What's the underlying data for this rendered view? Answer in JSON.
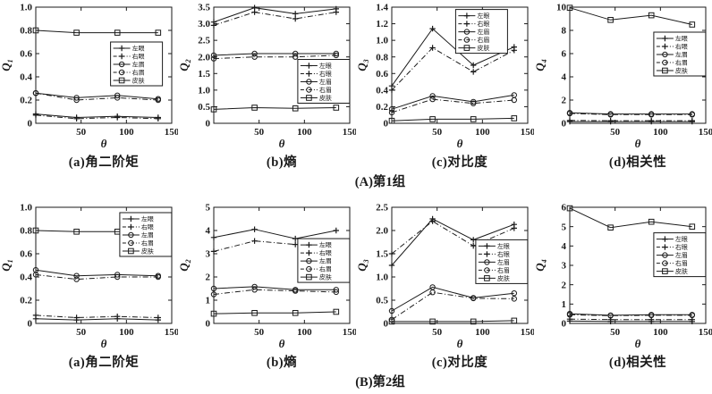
{
  "colors": {
    "ink": "#1a1a1a",
    "background": "#ffffff"
  },
  "group_captions": {
    "a": "(A)第1组",
    "b": "(B)第2组"
  },
  "legend": {
    "items": [
      {
        "label": "左眼",
        "line": "solid",
        "marker": "plus"
      },
      {
        "label": "右眼",
        "line": "dashdot",
        "marker": "plus"
      },
      {
        "label": "左眉",
        "line": "solid",
        "marker": "circle"
      },
      {
        "label": "右眉",
        "line": "dashdot",
        "marker": "circle"
      },
      {
        "label": "皮肤",
        "line": "solid",
        "marker": "square"
      }
    ]
  },
  "chart_data": [
    {
      "group": "A",
      "type": "line",
      "caption": "(a)角二阶矩",
      "xlabel": "θ",
      "ylabel": "Q",
      "ylabel_sub": "1",
      "x": [
        0,
        45,
        90,
        135
      ],
      "xlim": [
        0,
        150
      ],
      "xticks": [
        50,
        100,
        150
      ],
      "xtick_labels": [
        "50",
        "100",
        "150"
      ],
      "ylim": [
        0,
        1.0
      ],
      "yticks": [
        0,
        0.2,
        0.4,
        0.6,
        0.8,
        1.0
      ],
      "ytick_labels": [
        "0",
        "0.2",
        "0.4",
        "0.6",
        "0.8",
        "1.0"
      ],
      "grid": false,
      "legend_pos": {
        "fx": 0.55,
        "fy": 0.3
      },
      "series": [
        {
          "name": "左眼",
          "values": [
            0.08,
            0.05,
            0.06,
            0.05
          ]
        },
        {
          "name": "右眼",
          "values": [
            0.07,
            0.04,
            0.05,
            0.04
          ]
        },
        {
          "name": "左眉",
          "values": [
            0.26,
            0.22,
            0.24,
            0.21
          ]
        },
        {
          "name": "右眉",
          "values": [
            0.26,
            0.2,
            0.22,
            0.2
          ]
        },
        {
          "name": "皮肤",
          "values": [
            0.8,
            0.78,
            0.78,
            0.78
          ]
        }
      ]
    },
    {
      "group": "A",
      "type": "line",
      "caption": "(b)熵",
      "xlabel": "θ",
      "ylabel": "Q",
      "ylabel_sub": "2",
      "x": [
        0,
        45,
        90,
        135
      ],
      "xlim": [
        0,
        150
      ],
      "xticks": [
        50,
        100,
        150
      ],
      "xtick_labels": [
        "50",
        "100",
        "150"
      ],
      "ylim": [
        0,
        3.5
      ],
      "yticks": [
        0,
        0.5,
        1.0,
        1.5,
        2.0,
        2.5,
        3.0,
        3.5
      ],
      "ytick_labels": [
        "0",
        "0.5",
        "1.0",
        "1.5",
        "2.0",
        "2.5",
        "3.0",
        "3.5"
      ],
      "grid": false,
      "legend_pos": {
        "fx": 0.618,
        "fy": 0.45
      },
      "series": [
        {
          "name": "左眼",
          "values": [
            3.05,
            3.48,
            3.3,
            3.45
          ]
        },
        {
          "name": "右眼",
          "values": [
            2.95,
            3.35,
            3.15,
            3.35
          ]
        },
        {
          "name": "左眉",
          "values": [
            2.05,
            2.1,
            2.1,
            2.1
          ]
        },
        {
          "name": "右眉",
          "values": [
            1.95,
            2.0,
            2.0,
            2.05
          ]
        },
        {
          "name": "皮肤",
          "values": [
            0.42,
            0.47,
            0.45,
            0.47
          ]
        }
      ]
    },
    {
      "group": "A",
      "type": "line",
      "caption": "(c)对比度",
      "xlabel": "θ",
      "ylabel": "Q",
      "ylabel_sub": "3",
      "x": [
        0,
        45,
        90,
        135
      ],
      "xlim": [
        0,
        150
      ],
      "xticks": [
        50,
        100,
        150
      ],
      "xtick_labels": [
        "50",
        "100",
        "150"
      ],
      "ylim": [
        0,
        1.4
      ],
      "yticks": [
        0,
        0.2,
        0.4,
        0.6,
        0.8,
        1.0,
        1.2,
        1.4
      ],
      "ytick_labels": [
        "0",
        "0.2",
        "0.4",
        "0.6",
        "0.8",
        "1.0",
        "1.2",
        "1.4"
      ],
      "grid": false,
      "legend_pos": {
        "fx": 0.47,
        "fy": 0.02
      },
      "series": [
        {
          "name": "左眼",
          "values": [
            0.45,
            1.14,
            0.7,
            0.92
          ]
        },
        {
          "name": "右眼",
          "values": [
            0.4,
            0.91,
            0.62,
            0.88
          ]
        },
        {
          "name": "左眉",
          "values": [
            0.17,
            0.33,
            0.26,
            0.34
          ]
        },
        {
          "name": "右眉",
          "values": [
            0.13,
            0.29,
            0.24,
            0.28
          ]
        },
        {
          "name": "皮肤",
          "values": [
            0.03,
            0.05,
            0.05,
            0.06
          ]
        }
      ]
    },
    {
      "group": "A",
      "type": "line",
      "caption": "(d)相关性",
      "xlabel": "θ",
      "ylabel": "Q",
      "ylabel_sub": "4",
      "x": [
        0,
        45,
        90,
        135
      ],
      "xlim": [
        0,
        150
      ],
      "xticks": [
        50,
        100,
        150
      ],
      "xtick_labels": [
        "50",
        "100",
        "150"
      ],
      "ylim": [
        0,
        10
      ],
      "yticks": [
        0,
        2,
        4,
        6,
        8,
        10
      ],
      "ytick_labels": [
        "0",
        "2",
        "4",
        "6",
        "8",
        "10"
      ],
      "grid": false,
      "legend_pos": {
        "fx": 0.618,
        "fy": 0.215
      },
      "series": [
        {
          "name": "左眼",
          "values": [
            0.15,
            0.15,
            0.15,
            0.15
          ]
        },
        {
          "name": "右眼",
          "values": [
            0.25,
            0.22,
            0.22,
            0.22
          ]
        },
        {
          "name": "左眉",
          "values": [
            0.9,
            0.8,
            0.8,
            0.8
          ]
        },
        {
          "name": "右眉",
          "values": [
            0.85,
            0.75,
            0.75,
            0.75
          ]
        },
        {
          "name": "皮肤",
          "values": [
            9.95,
            8.9,
            9.3,
            8.5
          ]
        }
      ]
    },
    {
      "group": "B",
      "type": "line",
      "caption": "(a)角二阶矩",
      "xlabel": "θ",
      "ylabel": "Q",
      "ylabel_sub": "1",
      "x": [
        0,
        45,
        90,
        135
      ],
      "xlim": [
        0,
        150
      ],
      "xticks": [
        50,
        100,
        150
      ],
      "xtick_labels": [
        "50",
        "100",
        "150"
      ],
      "ylim": [
        0,
        1.0
      ],
      "yticks": [
        0,
        0.2,
        0.4,
        0.6,
        0.8,
        1.0
      ],
      "ytick_labels": [
        "0",
        "0.2",
        "0.4",
        "0.6",
        "0.8",
        "1.0"
      ],
      "grid": false,
      "legend_pos": {
        "fx": 0.618,
        "fy": 0.046
      },
      "series": [
        {
          "name": "左眼",
          "values": [
            0.04,
            0.03,
            0.04,
            0.03
          ]
        },
        {
          "name": "右眼",
          "values": [
            0.07,
            0.05,
            0.06,
            0.05
          ]
        },
        {
          "name": "左眉",
          "values": [
            0.46,
            0.41,
            0.42,
            0.41
          ]
        },
        {
          "name": "右眉",
          "values": [
            0.42,
            0.38,
            0.4,
            0.4
          ]
        },
        {
          "name": "皮肤",
          "values": [
            0.8,
            0.79,
            0.79,
            0.79
          ]
        }
      ]
    },
    {
      "group": "B",
      "type": "line",
      "caption": "(b)熵",
      "xlabel": "θ",
      "ylabel": "Q",
      "ylabel_sub": "2",
      "x": [
        0,
        45,
        90,
        135
      ],
      "xlim": [
        0,
        150
      ],
      "xticks": [
        50,
        100,
        150
      ],
      "xtick_labels": [
        "50",
        "100",
        "150"
      ],
      "ylim": [
        0,
        5
      ],
      "yticks": [
        0,
        1,
        2,
        3,
        4,
        5
      ],
      "ytick_labels": [
        "0",
        "1",
        "2",
        "3",
        "4",
        "5"
      ],
      "grid": false,
      "legend_pos": {
        "fx": 0.618,
        "fy": 0.27
      },
      "series": [
        {
          "name": "左眼",
          "values": [
            3.7,
            4.05,
            3.65,
            4.0
          ]
        },
        {
          "name": "右眼",
          "values": [
            3.1,
            3.55,
            3.4,
            3.5
          ]
        },
        {
          "name": "左眉",
          "values": [
            1.5,
            1.58,
            1.45,
            1.45
          ]
        },
        {
          "name": "右眉",
          "values": [
            1.25,
            1.45,
            1.4,
            1.35
          ]
        },
        {
          "name": "皮肤",
          "values": [
            0.42,
            0.45,
            0.45,
            0.5
          ]
        }
      ]
    },
    {
      "group": "B",
      "type": "line",
      "caption": "(c)对比度",
      "xlabel": "θ",
      "ylabel": "Q",
      "ylabel_sub": "3",
      "x": [
        0,
        45,
        90,
        135
      ],
      "xlim": [
        0,
        150
      ],
      "xticks": [
        50,
        100,
        150
      ],
      "xtick_labels": [
        "50",
        "100",
        "150"
      ],
      "ylim": [
        0,
        2.5
      ],
      "yticks": [
        0,
        0.5,
        1.0,
        1.5,
        2.0,
        2.5
      ],
      "ytick_labels": [
        "0",
        "0.5",
        "1.0",
        "1.5",
        "2.0",
        "2.5"
      ],
      "grid": false,
      "legend_pos": {
        "fx": 0.618,
        "fy": 0.28
      },
      "series": [
        {
          "name": "左眼",
          "values": [
            1.25,
            2.25,
            1.8,
            2.13
          ]
        },
        {
          "name": "右眼",
          "values": [
            1.5,
            2.2,
            1.67,
            2.05
          ]
        },
        {
          "name": "左眉",
          "values": [
            0.27,
            0.78,
            0.55,
            0.65
          ]
        },
        {
          "name": "右眉",
          "values": [
            0.08,
            0.67,
            0.54,
            0.53
          ]
        },
        {
          "name": "皮肤",
          "values": [
            0.04,
            0.04,
            0.04,
            0.06
          ]
        }
      ]
    },
    {
      "group": "B",
      "type": "line",
      "caption": "(d)相关性",
      "xlabel": "θ",
      "ylabel": "Q",
      "ylabel_sub": "4",
      "x": [
        0,
        45,
        90,
        135
      ],
      "xlim": [
        0,
        150
      ],
      "xticks": [
        50,
        100,
        150
      ],
      "xtick_labels": [
        "50",
        "100",
        "150"
      ],
      "ylim": [
        0,
        6
      ],
      "yticks": [
        0,
        1,
        2,
        3,
        4,
        5,
        6
      ],
      "ytick_labels": [
        "0",
        "1",
        "2",
        "3",
        "4",
        "5",
        "6"
      ],
      "grid": false,
      "legend_pos": {
        "fx": 0.618,
        "fy": 0.22
      },
      "series": [
        {
          "name": "左眼",
          "values": [
            0.12,
            0.1,
            0.1,
            0.1
          ]
        },
        {
          "name": "右眼",
          "values": [
            0.22,
            0.2,
            0.2,
            0.2
          ]
        },
        {
          "name": "左眉",
          "values": [
            0.5,
            0.42,
            0.45,
            0.45
          ]
        },
        {
          "name": "右眉",
          "values": [
            0.45,
            0.4,
            0.42,
            0.42
          ]
        },
        {
          "name": "皮肤",
          "values": [
            5.95,
            4.95,
            5.25,
            5.0
          ]
        }
      ]
    }
  ]
}
